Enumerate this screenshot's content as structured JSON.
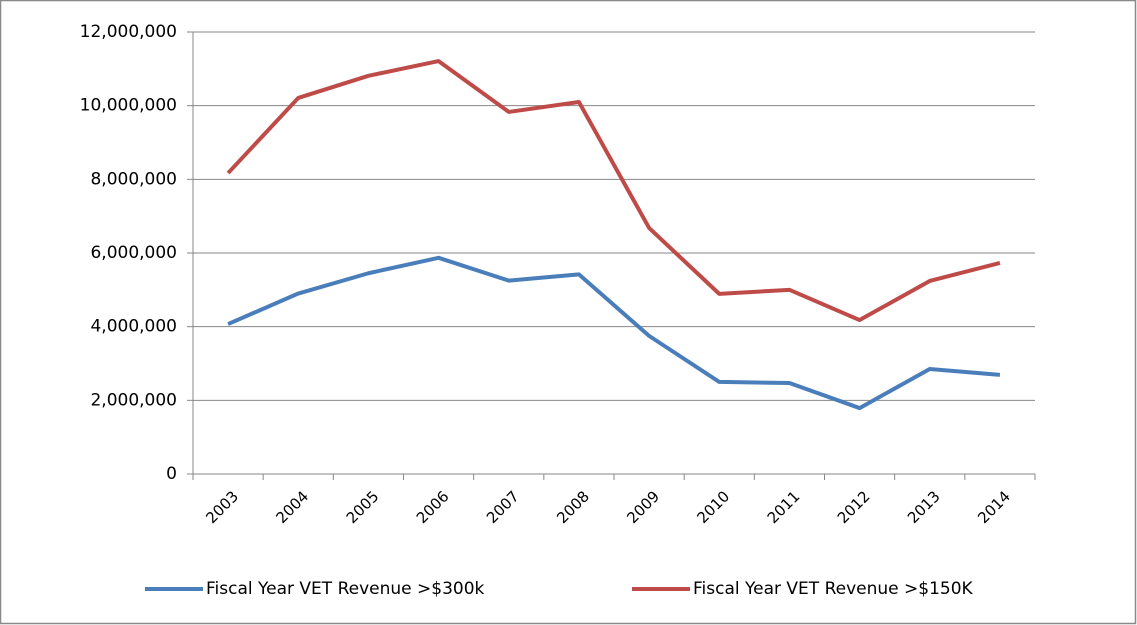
{
  "chart_data": {
    "type": "line",
    "categories": [
      "2003",
      "2004",
      "2005",
      "2006",
      "2007",
      "2008",
      "2009",
      "2010",
      "2011",
      "2012",
      "2013",
      "2014"
    ],
    "series": [
      {
        "name": "Fiscal Year VET Revenue >$300k",
        "color": "#4a7ebb",
        "values": [
          4070000,
          4900000,
          5450000,
          5870000,
          5250000,
          5420000,
          3750000,
          2500000,
          2470000,
          1790000,
          2850000,
          2690000
        ]
      },
      {
        "name": "Fiscal Year VET Revenue >$150K",
        "color": "#be4b48",
        "values": [
          8170000,
          10210000,
          10810000,
          11210000,
          9830000,
          10100000,
          6680000,
          4890000,
          5000000,
          4180000,
          5240000,
          5730000
        ]
      }
    ],
    "ylim": [
      0,
      12000000
    ],
    "yticks": [
      0,
      {
        "value": 2000000,
        "label": "2,000,000"
      },
      {
        "value": 4000000,
        "label": "4,000,000"
      },
      {
        "value": 6000000,
        "label": "6,000,000"
      },
      {
        "value": 8000000,
        "label": "8,000,000"
      },
      {
        "value": 10000000,
        "label": "10,000,000"
      },
      {
        "value": 12000000,
        "label": "12,000,000"
      }
    ],
    "grid": true,
    "legend": "bottom"
  }
}
